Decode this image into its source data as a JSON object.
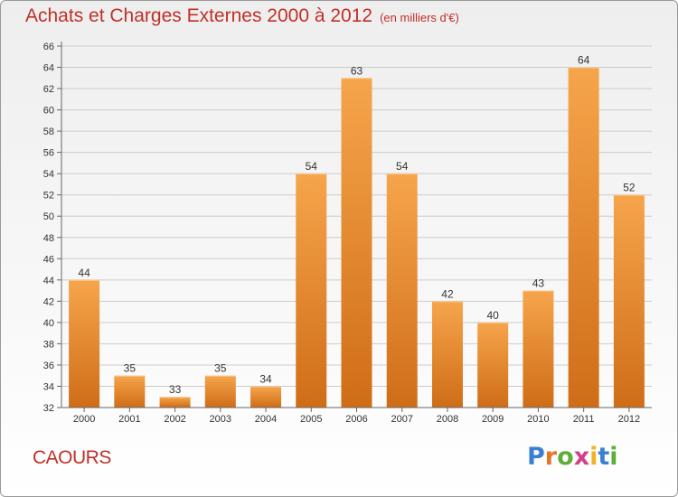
{
  "header": {
    "title": "Achats et Charges Externes 2000 à 2012",
    "subtitle": "(en milliers d'€)"
  },
  "footer": {
    "commune": "CAOURS",
    "logo": {
      "text": "Proxiti",
      "letter_colors": [
        "#3b7fd0",
        "#e8742a",
        "#5fae3a",
        "#d43f8d",
        "#f0b323",
        "#3b7fd0",
        "#5fae3a"
      ]
    }
  },
  "colors": {
    "bar_top": "#f6a54c",
    "bar_bottom": "#cf6d17",
    "title": "#c0302a",
    "grid": "#cccccc"
  },
  "chart_data": {
    "type": "bar",
    "title": "Achats et Charges Externes 2000 à 2012",
    "subtitle": "(en milliers d'€)",
    "categories": [
      "2000",
      "2001",
      "2002",
      "2003",
      "2004",
      "2005",
      "2006",
      "2007",
      "2008",
      "2009",
      "2010",
      "2011",
      "2012"
    ],
    "values": [
      44,
      35,
      33,
      35,
      34,
      54,
      63,
      54,
      42,
      40,
      43,
      64,
      52
    ],
    "ylim": [
      32,
      66
    ],
    "yticks": [
      32,
      34,
      36,
      38,
      40,
      42,
      44,
      46,
      48,
      50,
      52,
      54,
      56,
      58,
      60,
      62,
      64,
      66
    ],
    "grid": true,
    "data_labels": true
  }
}
